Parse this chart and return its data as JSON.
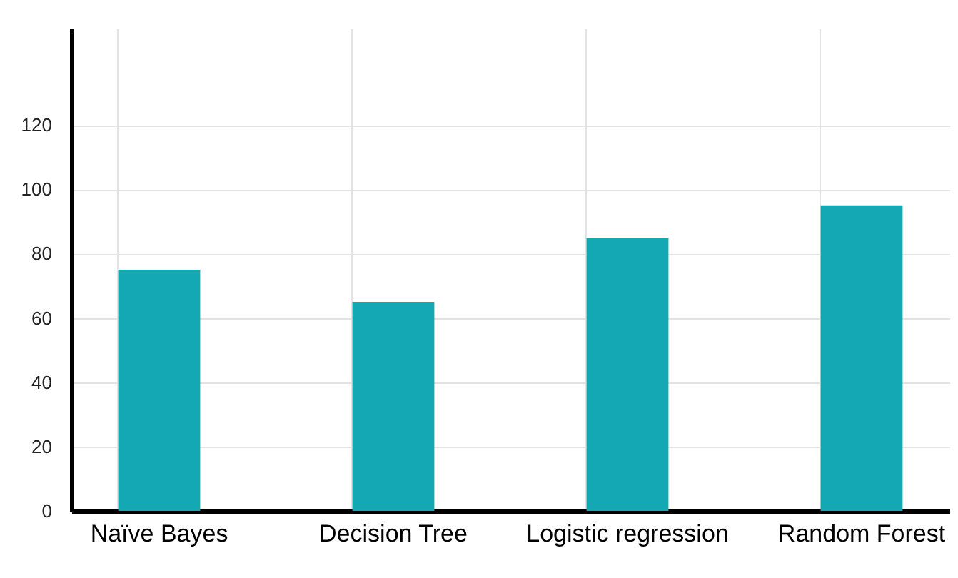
{
  "chart_data": {
    "type": "bar",
    "categories": [
      "Naïve Bayes",
      "Decision Tree",
      "Logistic regression",
      "Random Forest"
    ],
    "values": [
      75,
      65,
      85,
      95
    ],
    "color": "#14a8b5",
    "ylim": [
      0,
      150
    ],
    "yticks": [
      0,
      20,
      40,
      60,
      80,
      100,
      120
    ],
    "grid": true
  }
}
